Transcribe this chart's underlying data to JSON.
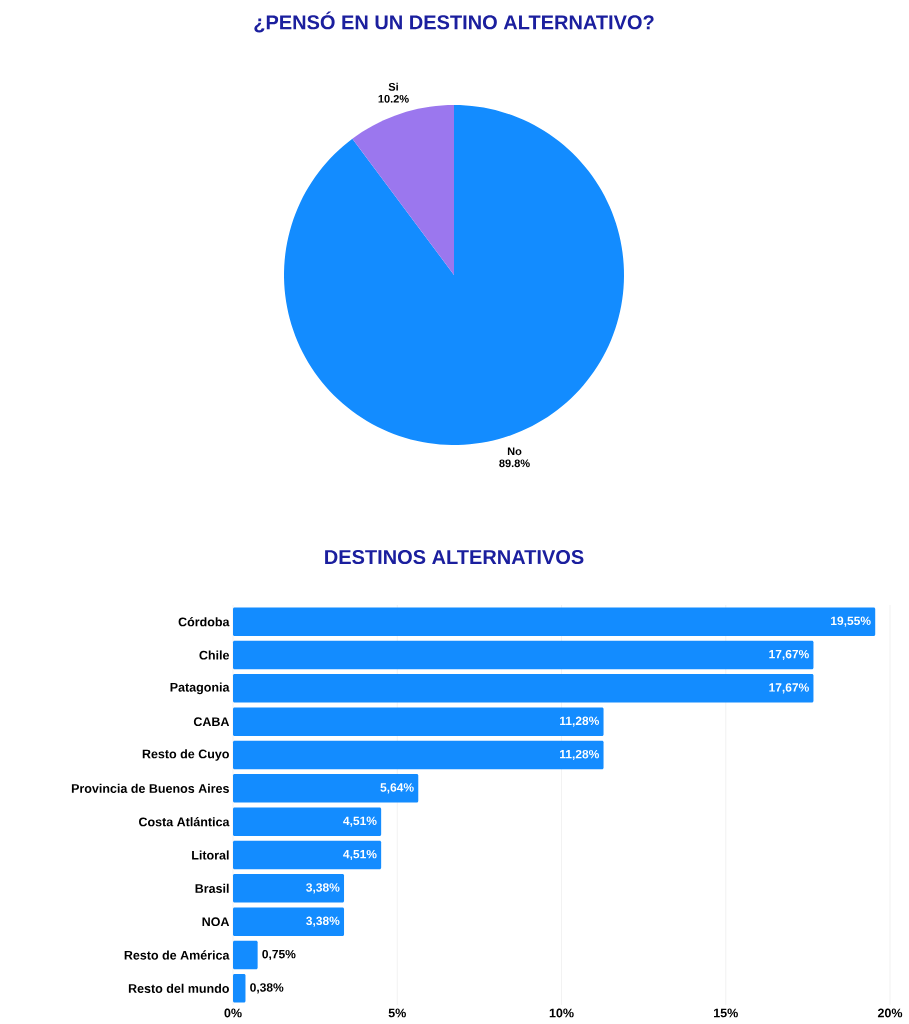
{
  "chart_data": [
    {
      "type": "pie",
      "title": "¿PENSÓ EN UN DESTINO ALTERNATIVO?",
      "categories": [
        "No",
        "Si"
      ],
      "values": [
        89.8,
        10.2
      ],
      "colors": [
        "#138cff",
        "#9b77ee"
      ],
      "value_labels": [
        "89.8%",
        "10.2%"
      ]
    },
    {
      "type": "bar",
      "orientation": "horizontal",
      "title": "DESTINOS ALTERNATIVOS",
      "categories": [
        "Córdoba",
        "Chile",
        "Patagonia",
        "CABA",
        "Resto de Cuyo",
        "Provincia de Buenos Aires",
        "Costa Atlántica",
        "Litoral",
        "Brasil",
        "NOA",
        "Resto de América",
        "Resto del mundo"
      ],
      "values": [
        19.55,
        17.67,
        17.67,
        11.28,
        11.28,
        5.64,
        4.51,
        4.51,
        3.38,
        3.38,
        0.75,
        0.38
      ],
      "color": "#138cff",
      "value_labels": [
        "19,55%",
        "17,67%",
        "17,67%",
        "11,28%",
        "11,28%",
        "5,64%",
        "4,51%",
        "4,51%",
        "3,38%",
        "3,38%",
        "0,75%",
        "0,38%"
      ],
      "xlim": [
        0,
        20
      ],
      "xticks": [
        {
          "value": 0,
          "label": "0%"
        },
        {
          "value": 5,
          "label": "5%"
        },
        {
          "value": 10,
          "label": "10%"
        },
        {
          "value": 15,
          "label": "15%"
        },
        {
          "value": 20,
          "label": "20%"
        }
      ],
      "grid": "x"
    }
  ]
}
